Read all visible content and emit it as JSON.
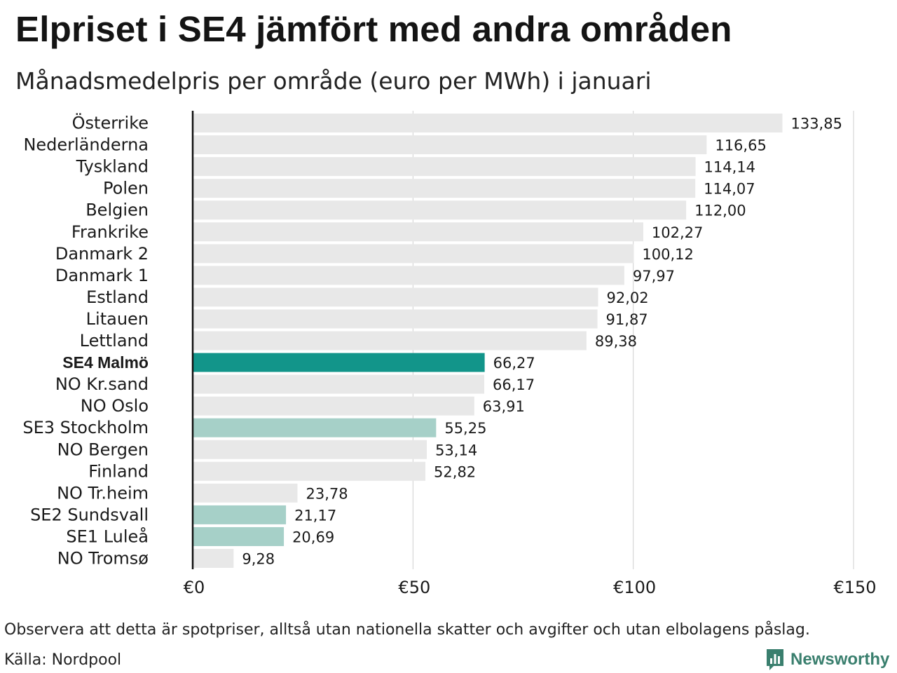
{
  "header": {
    "title": "Elpriset i SE4 jämfört med andra områden",
    "subtitle": "Månadsmedelpris per område (euro per MWh) i januari"
  },
  "footer": {
    "note": "Observera att detta är spotpriser, alltså utan nationella skatter och avgifter och utan elbolagens påslag.",
    "source": "Källa: Nordpool",
    "brand": "Newsworthy"
  },
  "colors": {
    "default_bar": "#e8e8e8",
    "highlight_bar": "#12958a",
    "swedish_bar": "#a6d0c8",
    "grid": "#cfcfcf",
    "axis": "#111111",
    "brand": "#3a7f6e"
  },
  "chart_data": {
    "type": "bar",
    "orientation": "horizontal",
    "title": "Elpriset i SE4 jämfört med andra områden",
    "subtitle": "Månadsmedelpris per område (euro per MWh) i januari",
    "xlim": [
      0,
      150
    ],
    "x_ticks": [
      0,
      50,
      100,
      150
    ],
    "x_tick_labels": [
      "€0",
      "€50",
      "€100",
      "€150"
    ],
    "grid": true,
    "categories": [
      "Österrike",
      "Nederländerna",
      "Tyskland",
      "Polen",
      "Belgien",
      "Frankrike",
      "Danmark  2",
      "Danmark  1",
      "Estland",
      "Litauen",
      "Lettland",
      "SE4 Malmö",
      "NO Kr.sand",
      "NO Oslo",
      "SE3  Stockholm",
      "NO Bergen",
      "Finland",
      "NO Tr.heim",
      "SE2  Sundsvall",
      "SE1  Luleå",
      "NO Tromsø"
    ],
    "values": [
      133.85,
      116.65,
      114.14,
      114.07,
      112.0,
      102.27,
      100.12,
      97.97,
      92.02,
      91.87,
      89.38,
      66.27,
      66.17,
      63.91,
      55.25,
      53.14,
      52.82,
      23.78,
      21.17,
      20.69,
      9.28
    ],
    "value_labels": [
      "133,85",
      "116,65",
      "114,14",
      "114,07",
      "112,00",
      "102,27",
      "100,12",
      "97,97",
      "92,02",
      "91,87",
      "89,38",
      "66,27",
      "66,17",
      "63,91",
      "55,25",
      "53,14",
      "52,82",
      "23,78",
      "21,17",
      "20,69",
      "9,28"
    ],
    "highlight": [
      "default",
      "default",
      "default",
      "default",
      "default",
      "default",
      "default",
      "default",
      "default",
      "default",
      "default",
      "primary",
      "default",
      "default",
      "swedish",
      "default",
      "default",
      "default",
      "swedish",
      "swedish",
      "default"
    ]
  }
}
